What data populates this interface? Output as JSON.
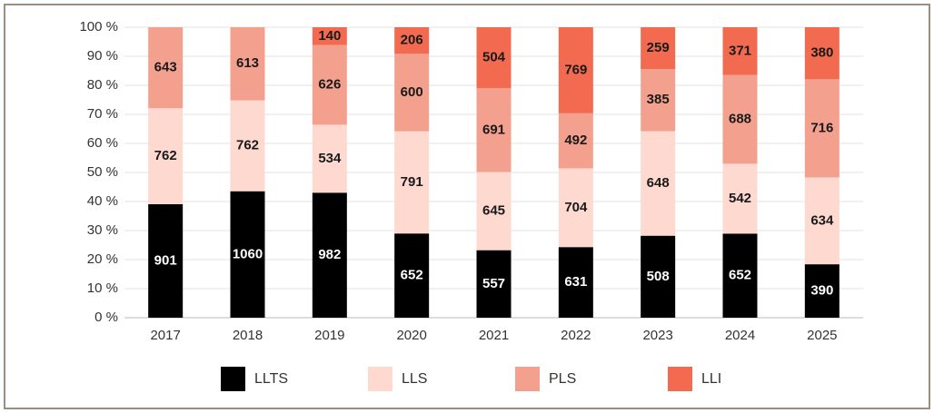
{
  "chart_data": {
    "type": "bar",
    "stacking": "percent",
    "categories": [
      "2017",
      "2018",
      "2019",
      "2020",
      "2021",
      "2022",
      "2023",
      "2024",
      "2025"
    ],
    "series": [
      {
        "name": "LLTS",
        "color": "#000000",
        "label_color": "#ffffff",
        "values": [
          901,
          1060,
          982,
          652,
          557,
          631,
          508,
          652,
          390
        ]
      },
      {
        "name": "LLS",
        "color": "#fdd9d0",
        "label_color": "#1a1a1a",
        "values": [
          762,
          762,
          534,
          791,
          645,
          704,
          648,
          542,
          634
        ]
      },
      {
        "name": "PLS",
        "color": "#f4a08e",
        "label_color": "#1a1a1a",
        "values": [
          643,
          613,
          626,
          600,
          691,
          492,
          385,
          688,
          716
        ]
      },
      {
        "name": "LLI",
        "color": "#f26b50",
        "label_color": "#1a1a1a",
        "values": [
          null,
          null,
          140,
          206,
          504,
          769,
          259,
          371,
          380
        ]
      }
    ],
    "ylim": [
      0,
      100
    ],
    "yticks": [
      {
        "value": 0,
        "label": "0 %"
      },
      {
        "value": 10,
        "label": "10 %"
      },
      {
        "value": 20,
        "label": "20 %"
      },
      {
        "value": 30,
        "label": "30 %"
      },
      {
        "value": 40,
        "label": "40 %"
      },
      {
        "value": 50,
        "label": "50 %"
      },
      {
        "value": 60,
        "label": "60 %"
      },
      {
        "value": 70,
        "label": "70 %"
      },
      {
        "value": 80,
        "label": "80 %"
      },
      {
        "value": 90,
        "label": "90 %"
      },
      {
        "value": 100,
        "label": "100 %"
      }
    ],
    "grid": true,
    "legend": "bottom"
  }
}
